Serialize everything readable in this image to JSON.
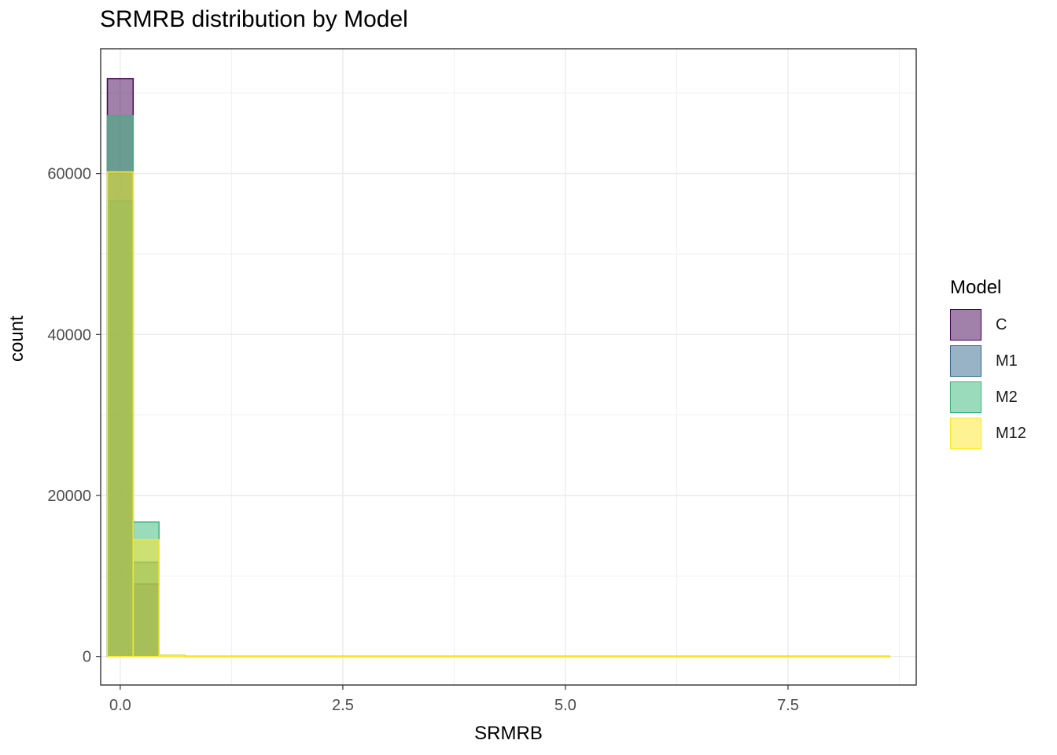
{
  "chart_data": {
    "type": "histogram",
    "title": "SRMRB distribution by Model",
    "xlabel": "SRMRB",
    "ylabel": "count",
    "xlim": [
      -0.22,
      8.94
    ],
    "ylim": [
      -3550,
      75500
    ],
    "x_ticks": [
      0.0,
      2.5,
      5.0,
      7.5
    ],
    "x_tick_labels": [
      "0.0",
      "2.5",
      "5.0",
      "7.5"
    ],
    "y_ticks": [
      0,
      20000,
      40000,
      60000
    ],
    "y_tick_labels": [
      "0",
      "20000",
      "40000",
      "60000"
    ],
    "bin_edges": [
      -0.145,
      0.145,
      0.435,
      0.725,
      8.64
    ],
    "grid": true,
    "legend": {
      "title": "Model",
      "position": "right"
    },
    "series": [
      {
        "name": "C",
        "fill": "#440154",
        "stroke": "#440154",
        "values": [
          71800,
          9000,
          100,
          0
        ]
      },
      {
        "name": "M1",
        "fill": "#31688e",
        "stroke": "#31688e",
        "values": [
          56600,
          11700,
          120,
          0
        ]
      },
      {
        "name": "M2",
        "fill": "#35b779",
        "stroke": "#35b779",
        "values": [
          67200,
          16700,
          150,
          0
        ]
      },
      {
        "name": "M12",
        "fill": "#fde725",
        "stroke": "#fde725",
        "values": [
          60200,
          14500,
          130,
          0
        ]
      }
    ]
  }
}
